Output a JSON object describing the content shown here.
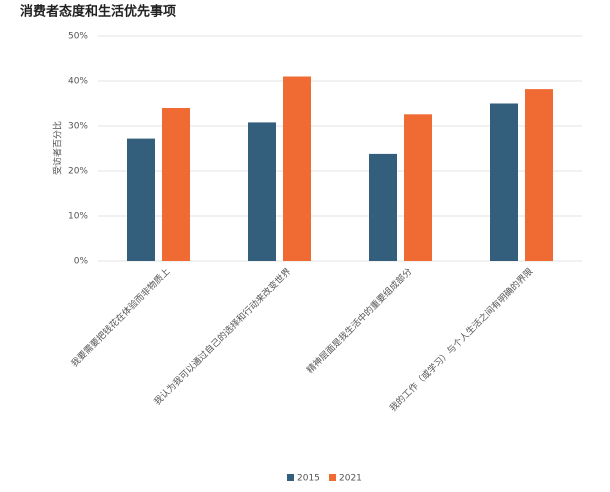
{
  "chart_data": {
    "type": "bar",
    "title": "消费者态度和生活优先事项",
    "y_label": "受访者百分比",
    "categories": [
      "我要需要把钱花在体验而非物质上",
      "我认为我可以通过自己的选择和行动来改变世界",
      "精神层面是我生活中的重要组成部分",
      "我的工作（或学习）与个人生活之间有明确的界限"
    ],
    "series": [
      {
        "name": "2015",
        "color": "#335f7d",
        "values": [
          27.2,
          30.8,
          23.8,
          35.0
        ]
      },
      {
        "name": "2021",
        "color": "#f06b34",
        "values": [
          34.0,
          41.0,
          32.6,
          38.2
        ]
      }
    ],
    "ylim": [
      0,
      50
    ],
    "yticks": [
      {
        "value": 0,
        "label": "0%"
      },
      {
        "value": 10,
        "label": "10%"
      },
      {
        "value": 20,
        "label": "20%"
      },
      {
        "value": 30,
        "label": "30%"
      },
      {
        "value": 40,
        "label": "40%"
      },
      {
        "value": 50,
        "label": "50%"
      }
    ],
    "grid": true
  }
}
